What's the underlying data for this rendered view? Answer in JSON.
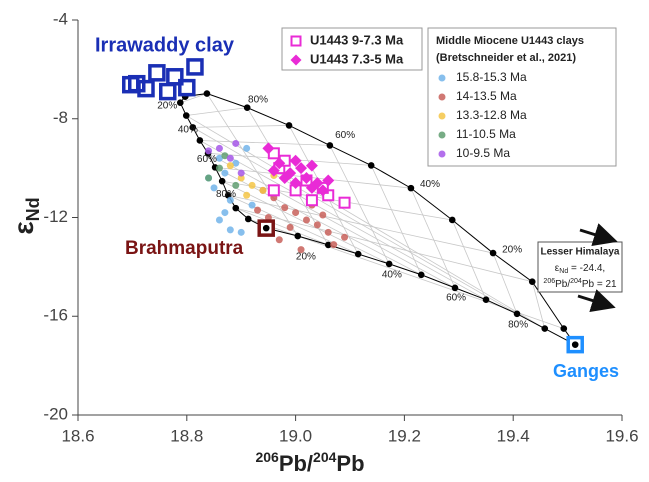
{
  "chart_data": {
    "type": "scatter",
    "xlabel": [
      "206",
      "Pb/",
      "204",
      "Pb"
    ],
    "ylabel": [
      "ε",
      "Nd"
    ],
    "xlim": [
      18.6,
      19.6
    ],
    "ylim": [
      -20,
      -4
    ],
    "xticks": [
      18.6,
      18.8,
      {
        "value": 19,
        "label": "19.0"
      },
      19.2,
      19.4,
      19.6
    ],
    "yticks": [
      -4,
      -8,
      -12,
      -16,
      -20
    ],
    "legend_group_title": [
      "Middle Miocene U1443 clays",
      "(Bretschneider et al., 2021)"
    ],
    "series": [
      {
        "name": "U1443 9-7.3 Ma",
        "color": "#e92bd6",
        "marker": "square-open",
        "legend": 1,
        "x": [
          18.96,
          18.97,
          19.0,
          19.03,
          19.06,
          19.09,
          19.02,
          18.96,
          19.05,
          18.98
        ],
        "y": [
          -9.4,
          -10.0,
          -10.9,
          -11.3,
          -11.1,
          -11.4,
          -10.5,
          -10.9,
          -10.8,
          -9.7
        ]
      },
      {
        "name": "U1443 7.3-5 Ma",
        "color": "#e92bd6",
        "marker": "diamond",
        "legend": 1,
        "x": [
          18.95,
          18.97,
          18.99,
          19.0,
          19.02,
          19.01,
          19.04,
          19.05,
          18.98,
          19.03,
          19.06,
          18.96,
          19.0,
          19.03
        ],
        "y": [
          -9.2,
          -9.8,
          -10.2,
          -9.7,
          -10.4,
          -10.0,
          -10.6,
          -10.9,
          -10.4,
          -10.8,
          -10.5,
          -10.1,
          -10.6,
          -9.9
        ]
      },
      {
        "name": "15.8-15.3 Ma",
        "color": "#72b4ea",
        "marker": "circle",
        "legend": 2,
        "x": [
          18.86,
          18.87,
          18.85,
          18.88,
          18.87,
          18.86,
          18.88,
          18.9,
          18.91,
          18.89,
          18.84,
          18.92
        ],
        "y": [
          -9.6,
          -10.2,
          -10.8,
          -11.3,
          -11.8,
          -12.1,
          -12.5,
          -12.6,
          -9.2,
          -9.8,
          -10.4,
          -11.5
        ]
      },
      {
        "name": "14-13.5 Ma",
        "color": "#c8605a",
        "marker": "circle",
        "legend": 2,
        "x": [
          18.96,
          18.98,
          19.0,
          19.02,
          19.04,
          19.06,
          18.95,
          18.97,
          19.01,
          19.03,
          19.05,
          19.09,
          18.93,
          18.99,
          19.07,
          18.94
        ],
        "y": [
          -11.2,
          -11.6,
          -11.8,
          -12.1,
          -12.3,
          -12.6,
          -12.0,
          -12.9,
          -13.3,
          -11.5,
          -11.9,
          -12.8,
          -11.7,
          -12.4,
          -13.1,
          -10.9
        ]
      },
      {
        "name": "13.3-12.8 Ma",
        "color": "#f5c647",
        "marker": "circle",
        "legend": 2,
        "x": [
          18.88,
          18.9,
          18.92,
          18.94,
          18.96,
          18.91
        ],
        "y": [
          -9.9,
          -10.4,
          -10.7,
          -10.9,
          -10.3,
          -11.1
        ]
      },
      {
        "name": "11-10.5 Ma",
        "color": "#5f9e70",
        "marker": "circle",
        "legend": 2,
        "x": [
          18.84,
          18.86,
          18.89,
          18.87
        ],
        "y": [
          -10.4,
          -10.0,
          -10.7,
          -9.5
        ]
      },
      {
        "name": "10-9.5 Ma",
        "color": "#a657e9",
        "marker": "circle",
        "legend": 2,
        "x": [
          18.86,
          18.88,
          18.84,
          18.9,
          18.89
        ],
        "y": [
          -9.2,
          -9.6,
          -9.3,
          -10.2,
          -9.0
        ]
      }
    ],
    "endmembers": [
      {
        "name": "Irrawaddy clay",
        "color": "#1a2fb5",
        "x": [
          18.708,
          18.745,
          18.778,
          18.815,
          18.725,
          18.765,
          18.8,
          18.697
        ],
        "y": [
          -6.58,
          -6.14,
          -6.3,
          -5.9,
          -6.78,
          -6.9,
          -6.74,
          -6.62
        ]
      },
      {
        "name": "Brahmaputra",
        "color": "#7a1414",
        "x": [
          18.946
        ],
        "y": [
          -12.43
        ]
      },
      {
        "name": "Ganges",
        "color": "#1e8fff",
        "x": [
          19.514
        ],
        "y": [
          -17.15
        ]
      }
    ],
    "mixing_curves": [
      {
        "color": "#000000",
        "x": [
          18.797,
          18.837,
          18.911,
          18.988,
          19.063,
          19.139,
          19.212,
          19.288,
          19.363,
          19.435,
          19.493,
          19.514
        ],
        "y": [
          -7.1,
          -6.98,
          -7.55,
          -8.27,
          -9.08,
          -9.89,
          -10.81,
          -12.1,
          -13.44,
          -14.6,
          -16.5,
          -17.15
        ]
      },
      {
        "color": "#000000",
        "x": [
          18.797,
          18.788,
          18.799,
          18.811,
          18.824,
          18.839,
          18.852,
          18.865,
          18.876,
          18.89,
          18.913,
          18.946
        ],
        "y": [
          -7.1,
          -7.35,
          -7.87,
          -8.35,
          -8.88,
          -9.4,
          -9.97,
          -10.53,
          -11.1,
          -11.62,
          -12.06,
          -12.43
        ]
      },
      {
        "color": "#000000",
        "x": [
          18.946,
          19.004,
          19.06,
          19.115,
          19.172,
          19.231,
          19.293,
          19.35,
          19.407,
          19.458,
          19.514
        ],
        "y": [
          -12.43,
          -12.75,
          -13.11,
          -13.48,
          -13.88,
          -14.32,
          -14.85,
          -15.33,
          -15.9,
          -16.5,
          -17.15
        ]
      }
    ],
    "annotations": [
      {
        "text": "80%",
        "x": 18.931,
        "y": -7.23
      },
      {
        "text": "60%",
        "x": 19.091,
        "y": -8.68
      },
      {
        "text": "40%",
        "x": 19.247,
        "y": -10.65
      },
      {
        "text": "20%",
        "x": 19.398,
        "y": -13.31
      },
      {
        "text": "20%",
        "x": 18.764,
        "y": -7.47
      },
      {
        "text": "40%",
        "x": 18.802,
        "y": -8.44
      },
      {
        "text": "60%",
        "x": 18.837,
        "y": -9.65
      },
      {
        "text": "80%",
        "x": 18.872,
        "y": -11.06
      },
      {
        "text": "20%",
        "x": 19.019,
        "y": -13.6
      },
      {
        "text": "40%",
        "x": 19.177,
        "y": -14.32
      },
      {
        "text": "60%",
        "x": 19.295,
        "y": -15.25
      },
      {
        "text": "80%",
        "x": 19.409,
        "y": -16.34
      }
    ],
    "note_lines": [
      [
        "Lesser Himalaya"
      ],
      [
        "ε",
        "Nd",
        " = -24.4,"
      ],
      [
        "206",
        "Pb/",
        "204",
        "Pb = 21"
      ]
    ]
  }
}
